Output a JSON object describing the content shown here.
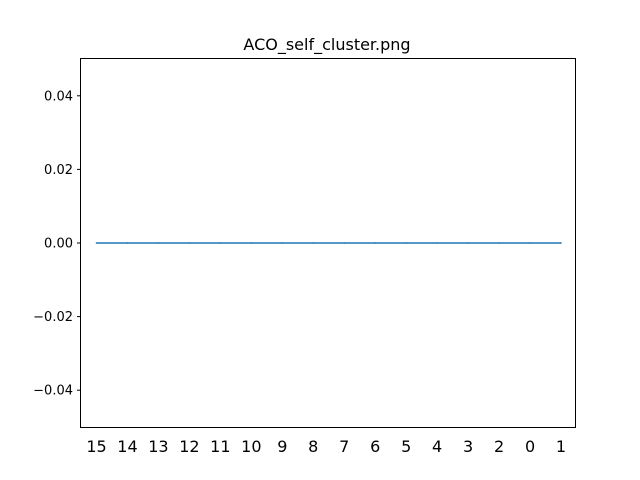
{
  "chart_data": {
    "type": "line",
    "title": "ACO_self_cluster.png",
    "xlabel": "",
    "ylabel": "",
    "categories": [
      "15",
      "14",
      "13",
      "12",
      "11",
      "10",
      "9",
      "8",
      "7",
      "6",
      "5",
      "4",
      "3",
      "2",
      "0",
      "1"
    ],
    "series": [
      {
        "values": [
          0,
          0,
          0,
          0,
          0,
          0,
          0,
          0,
          0,
          0,
          0,
          0,
          0,
          0,
          0,
          0
        ],
        "color": "#1f77b4"
      }
    ],
    "ylim": [
      -0.05,
      0.05
    ],
    "yticks": [
      -0.04,
      -0.02,
      0.0,
      0.02,
      0.04
    ],
    "ytick_labels": [
      "−0.04",
      "−0.02",
      "0.00",
      "0.02",
      "0.04"
    ],
    "grid": false,
    "x_tick_marks": false
  }
}
